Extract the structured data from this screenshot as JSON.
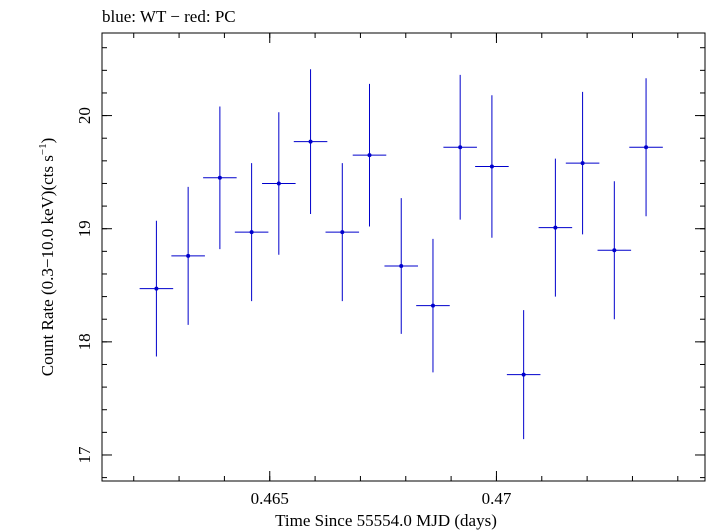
{
  "chart_data": {
    "type": "scatter",
    "title": "blue: WT − red: PC",
    "xlabel": "Time Since 55554.0 MJD (days)",
    "ylabel_main": "Count Rate (0.3−10.0 keV)(cts s",
    "ylabel_sup": "−1",
    "ylabel_close": ")",
    "xlim": [
      0.4613,
      0.4746
    ],
    "ylim": [
      16.77,
      20.73
    ],
    "xticks": [
      {
        "value": 0.465,
        "label": "0.465"
      },
      {
        "value": 0.47,
        "label": "0.47"
      }
    ],
    "yticks": [
      {
        "value": 17,
        "label": "17"
      },
      {
        "value": 18,
        "label": "18"
      },
      {
        "value": 19,
        "label": "19"
      },
      {
        "value": 20,
        "label": "20"
      }
    ],
    "x_minor_step": 0.001,
    "y_minor_step": 0.2,
    "grid": false,
    "series": [
      {
        "color": "#0000cc",
        "x_err": 0.00037,
        "points": [
          {
            "x": 0.4625,
            "y": 18.47,
            "yerr": 0.6
          },
          {
            "x": 0.4632,
            "y": 18.76,
            "yerr": 0.61
          },
          {
            "x": 0.4639,
            "y": 19.45,
            "yerr": 0.63
          },
          {
            "x": 0.4646,
            "y": 18.97,
            "yerr": 0.61
          },
          {
            "x": 0.4652,
            "y": 19.4,
            "yerr": 0.63
          },
          {
            "x": 0.4659,
            "y": 19.77,
            "yerr": 0.64
          },
          {
            "x": 0.4666,
            "y": 18.97,
            "yerr": 0.61
          },
          {
            "x": 0.4672,
            "y": 19.65,
            "yerr": 0.63
          },
          {
            "x": 0.4679,
            "y": 18.67,
            "yerr": 0.6
          },
          {
            "x": 0.4686,
            "y": 18.32,
            "yerr": 0.59
          },
          {
            "x": 0.4692,
            "y": 19.72,
            "yerr": 0.64
          },
          {
            "x": 0.4699,
            "y": 19.55,
            "yerr": 0.63
          },
          {
            "x": 0.4706,
            "y": 17.71,
            "yerr": 0.57
          },
          {
            "x": 0.4713,
            "y": 19.01,
            "yerr": 0.61
          },
          {
            "x": 0.4719,
            "y": 19.58,
            "yerr": 0.63
          },
          {
            "x": 0.4726,
            "y": 18.81,
            "yerr": 0.61
          },
          {
            "x": 0.4733,
            "y": 19.72,
            "yerr": 0.61
          }
        ]
      }
    ]
  }
}
